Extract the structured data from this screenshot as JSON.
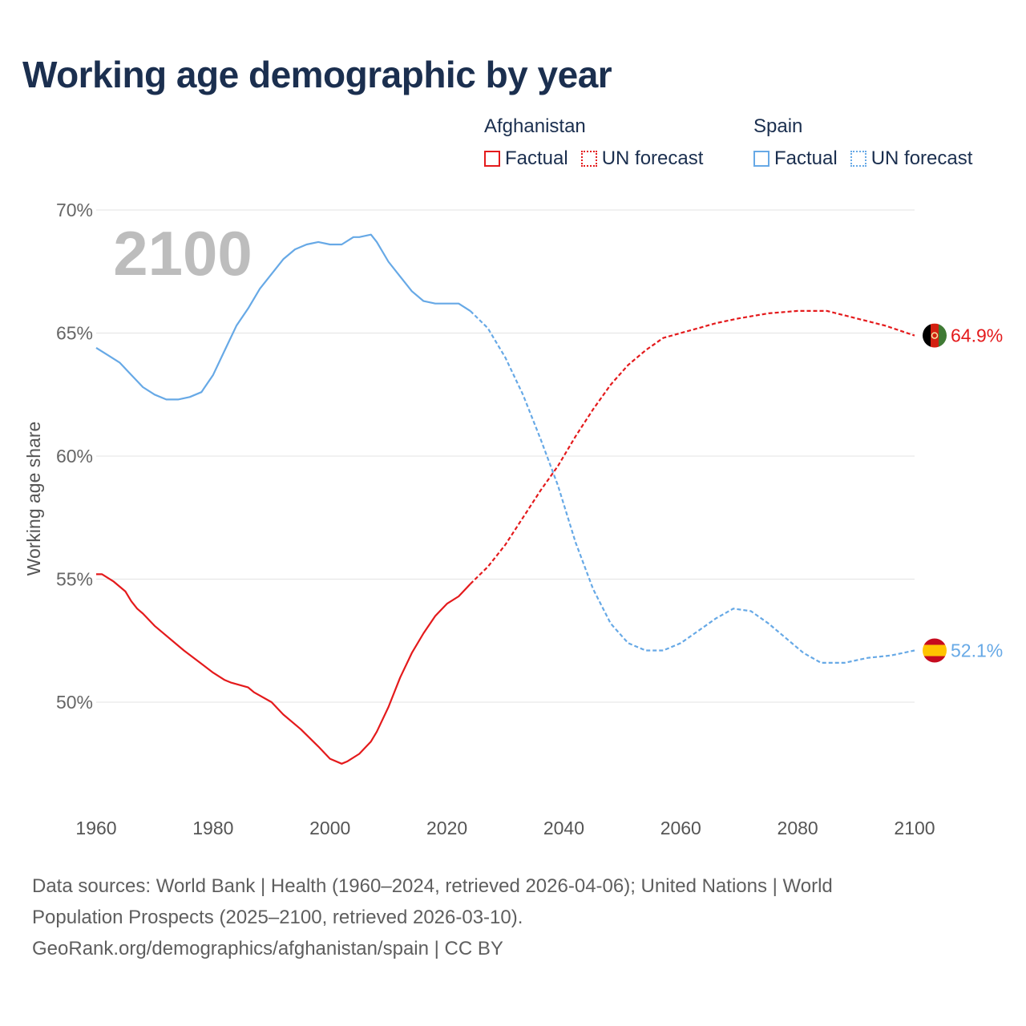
{
  "title": "Working age demographic by year",
  "legend": {
    "groups": [
      {
        "name": "Afghanistan",
        "color": "#e41a1c",
        "factual_label": "Factual",
        "forecast_label": "UN forecast"
      },
      {
        "name": "Spain",
        "color": "#67a9e6",
        "factual_label": "Factual",
        "forecast_label": "UN forecast"
      }
    ]
  },
  "footer": {
    "line1": "Data sources: World Bank | Health (1960–2024, retrieved 2026-04-06); United Nations | World",
    "line2": "Population Prospects (2025–2100, retrieved 2026-03-10).",
    "line3": "GeoRank.org/demographics/afghanistan/spain | CC BY"
  },
  "chart_data": {
    "type": "line",
    "title": "Working age demographic by year",
    "xlabel": "",
    "ylabel": "Working age share",
    "year_watermark": "2100",
    "xlim": [
      1960,
      2100
    ],
    "ylim": [
      45.5,
      70
    ],
    "x_ticks": [
      "1960",
      "1980",
      "2000",
      "2020",
      "2040",
      "2060",
      "2080",
      "2100"
    ],
    "y_ticks": [
      {
        "value": 50,
        "label": "50%"
      },
      {
        "value": 55,
        "label": "55%"
      },
      {
        "value": 60,
        "label": "60%"
      },
      {
        "value": 65,
        "label": "65%"
      },
      {
        "value": 70,
        "label": "70%"
      }
    ],
    "grid": true,
    "series": [
      {
        "name": "Afghanistan",
        "color": "#e41a1c",
        "flag": "afghanistan",
        "end_label": "64.9%",
        "factual": {
          "x": [
            1960,
            1961,
            1963,
            1965,
            1966,
            1967,
            1968,
            1970,
            1975,
            1980,
            1982,
            1983,
            1986,
            1987,
            1990,
            1992,
            1995,
            1998,
            2000,
            2002,
            2003,
            2005,
            2007,
            2008,
            2010,
            2012,
            2014,
            2016,
            2018,
            2020,
            2022,
            2024
          ],
          "y": [
            55.2,
            55.2,
            54.9,
            54.5,
            54.1,
            53.8,
            53.6,
            53.1,
            52.1,
            51.2,
            50.9,
            50.8,
            50.6,
            50.4,
            50.0,
            49.5,
            48.9,
            48.2,
            47.7,
            47.5,
            47.6,
            47.9,
            48.4,
            48.8,
            49.8,
            51.0,
            52.0,
            52.8,
            53.5,
            54.0,
            54.3,
            54.8
          ]
        },
        "forecast": {
          "x": [
            2024,
            2027,
            2030,
            2033,
            2036,
            2039,
            2042,
            2045,
            2048,
            2051,
            2054,
            2057,
            2060,
            2063,
            2066,
            2070,
            2075,
            2080,
            2085,
            2090,
            2095,
            2100
          ],
          "y": [
            54.8,
            55.5,
            56.4,
            57.5,
            58.6,
            59.6,
            60.8,
            61.9,
            62.9,
            63.7,
            64.3,
            64.8,
            65.0,
            65.2,
            65.4,
            65.6,
            65.8,
            65.9,
            65.9,
            65.6,
            65.3,
            64.9
          ]
        }
      },
      {
        "name": "Spain",
        "color": "#67a9e6",
        "flag": "spain",
        "end_label": "52.1%",
        "factual": {
          "x": [
            1960,
            1962,
            1964,
            1966,
            1968,
            1970,
            1972,
            1974,
            1976,
            1978,
            1980,
            1982,
            1984,
            1986,
            1988,
            1990,
            1992,
            1994,
            1996,
            1998,
            2000,
            2002,
            2004,
            2005,
            2007,
            2008,
            2010,
            2012,
            2014,
            2016,
            2018,
            2020,
            2022,
            2024
          ],
          "y": [
            64.4,
            64.1,
            63.8,
            63.3,
            62.8,
            62.5,
            62.3,
            62.3,
            62.4,
            62.6,
            63.3,
            64.3,
            65.3,
            66.0,
            66.8,
            67.4,
            68.0,
            68.4,
            68.6,
            68.7,
            68.6,
            68.6,
            68.9,
            68.9,
            69.0,
            68.7,
            67.9,
            67.3,
            66.7,
            66.3,
            66.2,
            66.2,
            66.2,
            65.9
          ]
        },
        "forecast": {
          "x": [
            2024,
            2027,
            2030,
            2033,
            2036,
            2039,
            2042,
            2045,
            2048,
            2051,
            2054,
            2057,
            2060,
            2063,
            2066,
            2069,
            2072,
            2075,
            2078,
            2081,
            2084,
            2088,
            2092,
            2096,
            2100
          ],
          "y": [
            65.9,
            65.2,
            64.0,
            62.5,
            60.7,
            58.8,
            56.5,
            54.6,
            53.2,
            52.4,
            52.1,
            52.1,
            52.4,
            52.9,
            53.4,
            53.8,
            53.7,
            53.2,
            52.6,
            52.0,
            51.6,
            51.6,
            51.8,
            51.9,
            52.1
          ]
        }
      }
    ]
  }
}
